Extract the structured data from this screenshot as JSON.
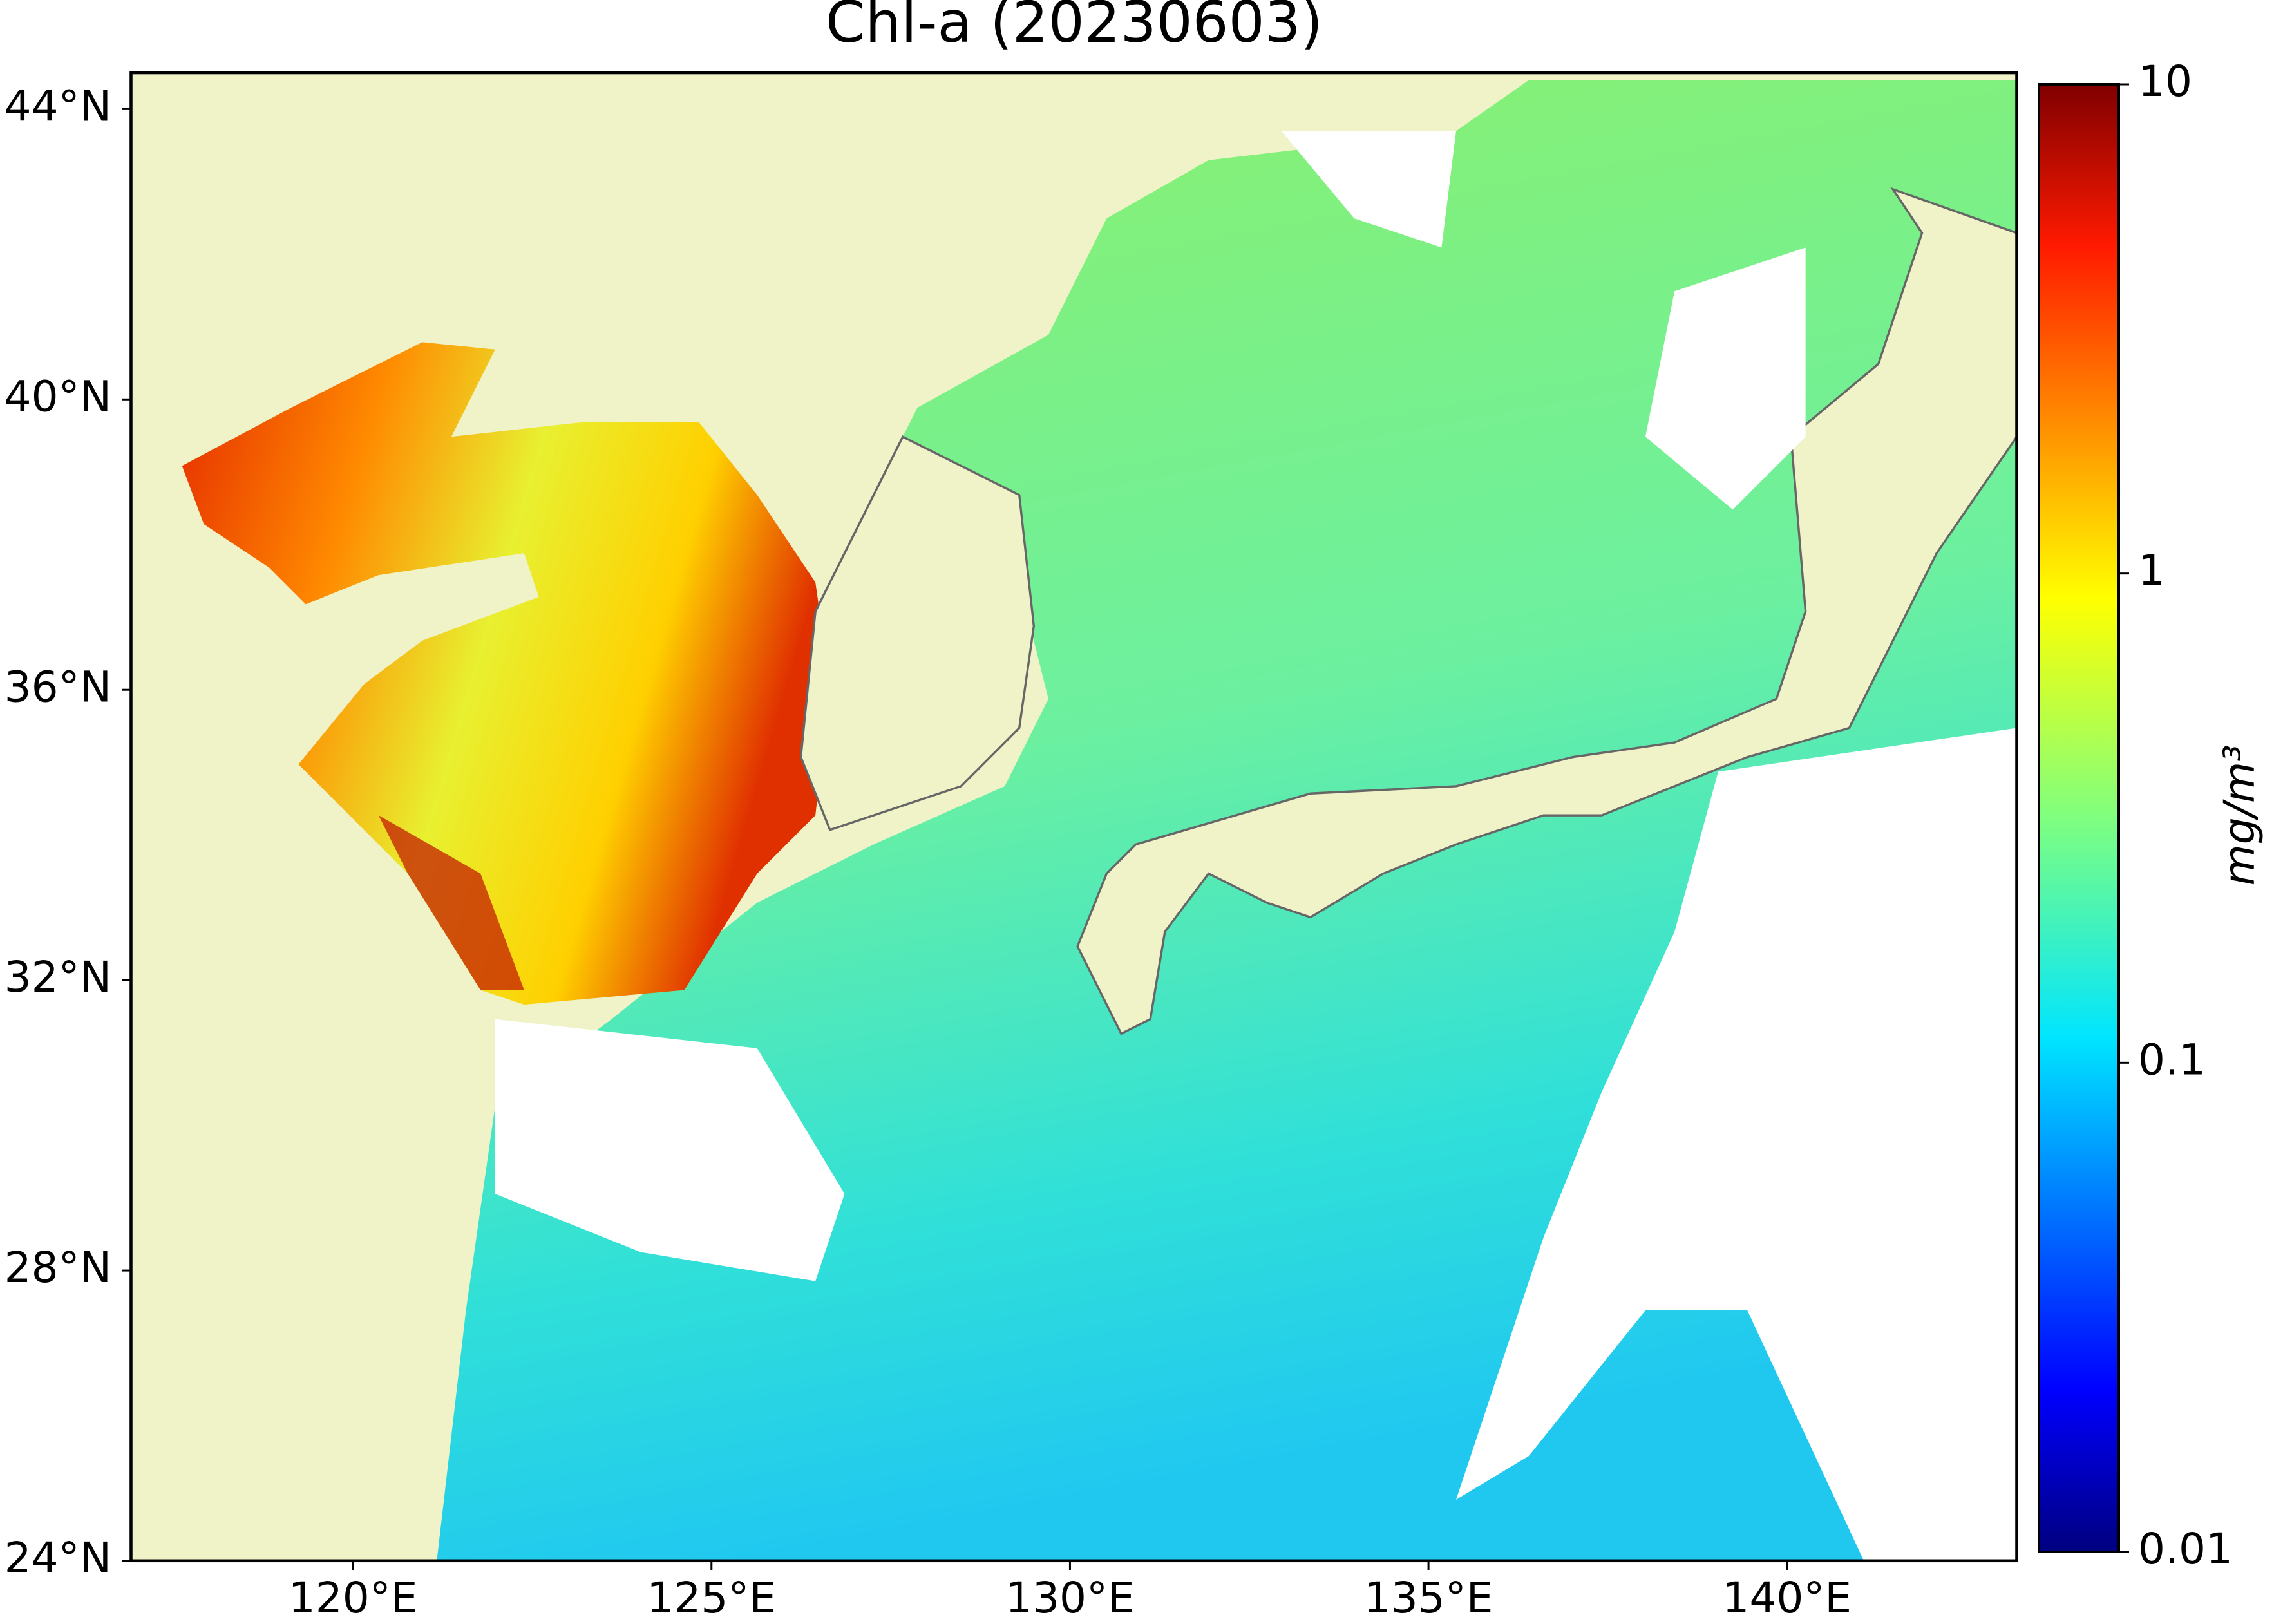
{
  "chart_data": {
    "type": "map",
    "title": "Chl-a (20230603)",
    "xlim": [
      116.9,
      143.2
    ],
    "ylim": [
      24,
      44.5
    ],
    "xticks": [
      {
        "value": 120,
        "label": "120°E"
      },
      {
        "value": 125,
        "label": "125°E"
      },
      {
        "value": 130,
        "label": "130°E"
      },
      {
        "value": 135,
        "label": "135°E"
      },
      {
        "value": 140,
        "label": "140°E"
      }
    ],
    "yticks": [
      {
        "value": 24,
        "label": "24°N"
      },
      {
        "value": 28,
        "label": "28°N"
      },
      {
        "value": 32,
        "label": "32°N"
      },
      {
        "value": 36,
        "label": "36°N"
      },
      {
        "value": 40,
        "label": "40°N"
      },
      {
        "value": 44,
        "label": "44°N"
      }
    ],
    "colorbar": {
      "label": "mg/m³",
      "clim": [
        0.01,
        10
      ],
      "log": true,
      "ticks": [
        0.01,
        0.1,
        1,
        10
      ]
    }
  }
}
